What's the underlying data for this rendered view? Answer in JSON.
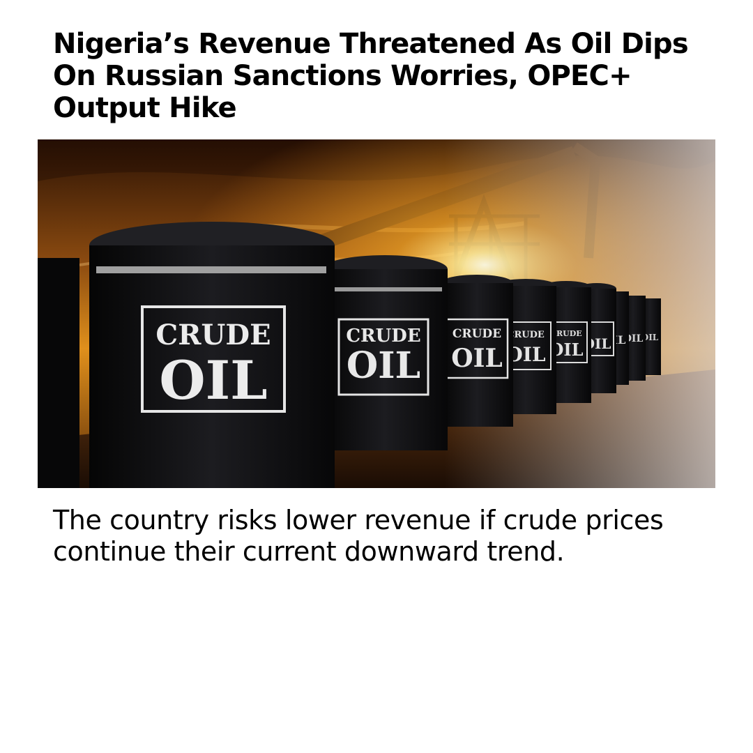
{
  "article": {
    "headline": "Nigeria’s Revenue Threatened As Oil Dips On Russian Sanctions Worries, OPEC+ Output Hike",
    "summary": "The country risks lower revenue if crude prices continue their current downward trend."
  },
  "hero_image": {
    "barrel_label_line1": "CRUDE",
    "barrel_label_line2": "OIL",
    "palette": {
      "sky_top": "#3a1a06",
      "sky_glow": "#f0a020",
      "sun": "#fff6c8",
      "barrel": "#0c0c0e",
      "label": "#e8e8e8"
    }
  }
}
